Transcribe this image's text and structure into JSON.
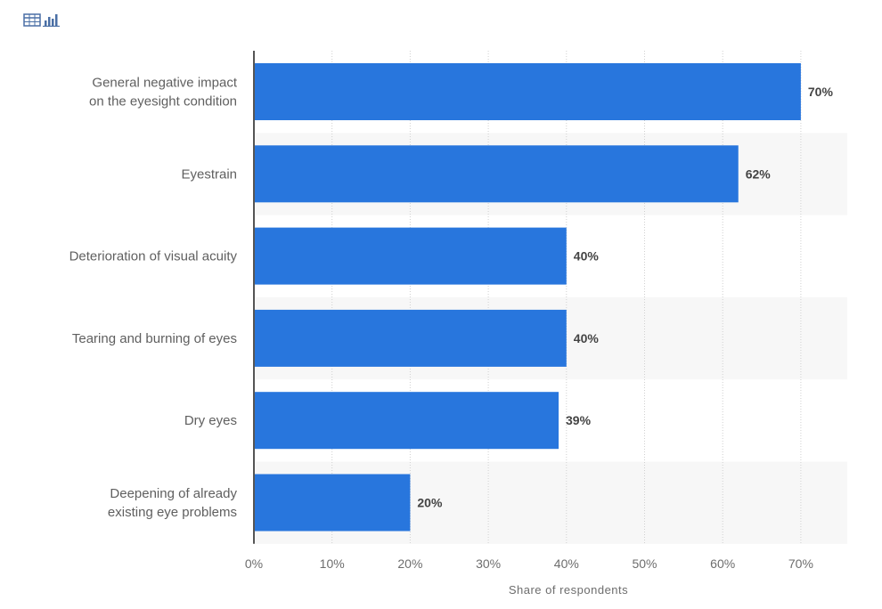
{
  "toolbar": {
    "icons": [
      "table-view-icon",
      "bar-chart-view-icon"
    ]
  },
  "colors": {
    "bar": "#2876dd",
    "band": "#f7f7f7",
    "axis": "#555555",
    "grid": "#d0d0d0",
    "icon": "#4a6fa5"
  },
  "chart_data": {
    "type": "bar",
    "orientation": "horizontal",
    "categories": [
      "General negative impact\non the eyesight condition",
      "Eyestrain",
      "Deterioration of visual acuity",
      "Tearing and burning of eyes",
      "Dry eyes",
      "Deepening of already\nexisting eye problems"
    ],
    "values": [
      70,
      62,
      40,
      40,
      39,
      20
    ],
    "value_labels": [
      "70%",
      "62%",
      "40%",
      "40%",
      "39%",
      "20%"
    ],
    "x_ticks": [
      0,
      10,
      20,
      30,
      40,
      50,
      60,
      70
    ],
    "x_tick_labels": [
      "0%",
      "10%",
      "20%",
      "30%",
      "40%",
      "50%",
      "60%",
      "70%"
    ],
    "xlabel": "Share of respondents",
    "ylabel": "",
    "title": "",
    "xlim": [
      0,
      76
    ],
    "grid": true,
    "legend": "none"
  }
}
